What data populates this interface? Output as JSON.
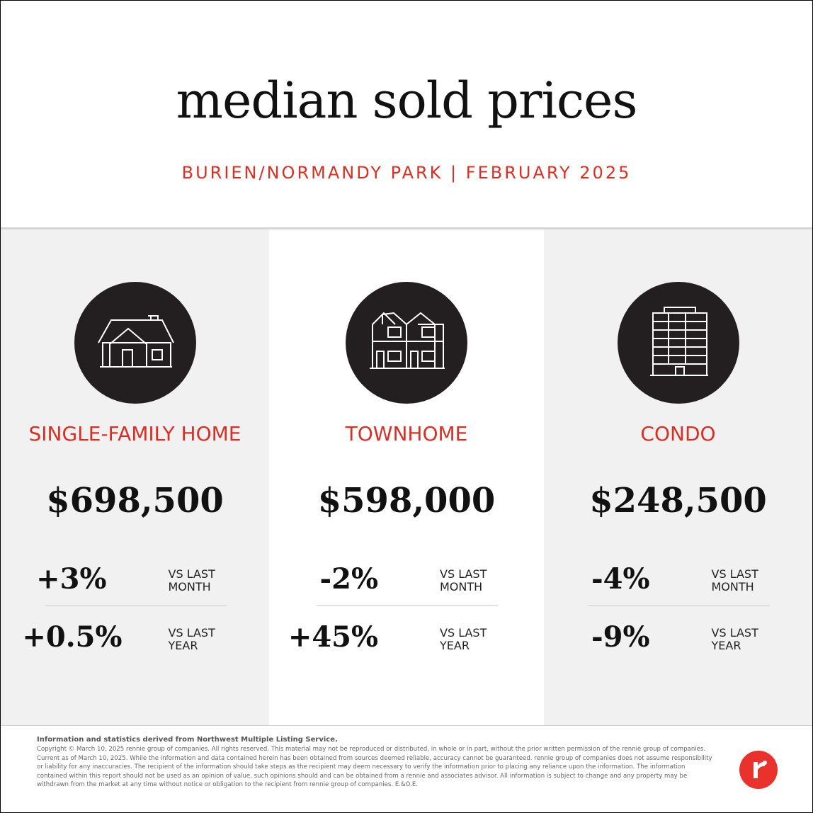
{
  "header": {
    "title": "median sold prices",
    "subtitle": "BURIEN/NORMANDY PARK | FEBRUARY 2025"
  },
  "columns": [
    {
      "label": "SINGLE-FAMILY HOME",
      "price": "$698,500",
      "changes": [
        {
          "value": "+3%",
          "label": "VS LAST MONTH"
        },
        {
          "value": "+0.5%",
          "label": "VS LAST YEAR"
        }
      ]
    },
    {
      "label": "TOWNHOME",
      "price": "$598,000",
      "changes": [
        {
          "value": "-2%",
          "label": "VS LAST MONTH"
        },
        {
          "value": "+45%",
          "label": "VS LAST YEAR"
        }
      ]
    },
    {
      "label": "CONDO",
      "price": "$248,500",
      "changes": [
        {
          "value": "-4%",
          "label": "VS LAST MONTH"
        },
        {
          "value": "-9%",
          "label": "VS LAST YEAR"
        }
      ]
    }
  ],
  "footer": {
    "source": "Information and statistics derived from Northwest Multiple Listing Service.",
    "disclaimer": "Copyright © March 10, 2025 rennie group of companies. All rights reserved. This material may not be reproduced or distributed, in whole or in part, without the prior written permission of the rennie group of companies. Current as of March 10, 2025. While the information and data contained herein has been obtained from sources deemed reliable, accuracy cannot be guaranteed. rennie group of companies does not assume responsibility or liability for any inaccuracies. The recipient of the information should take steps as the recipient may deem necessary to verify the information prior to placing any reliance upon the information. The information contained within this report should not be used as an opinion of value, such opinions should and can be obtained from a rennie and associates advisor. All information is subject to change and any property may be withdrawn from the market at any time without notice or obligation to the recipient from rennie group of companies. E.&O.E."
  }
}
